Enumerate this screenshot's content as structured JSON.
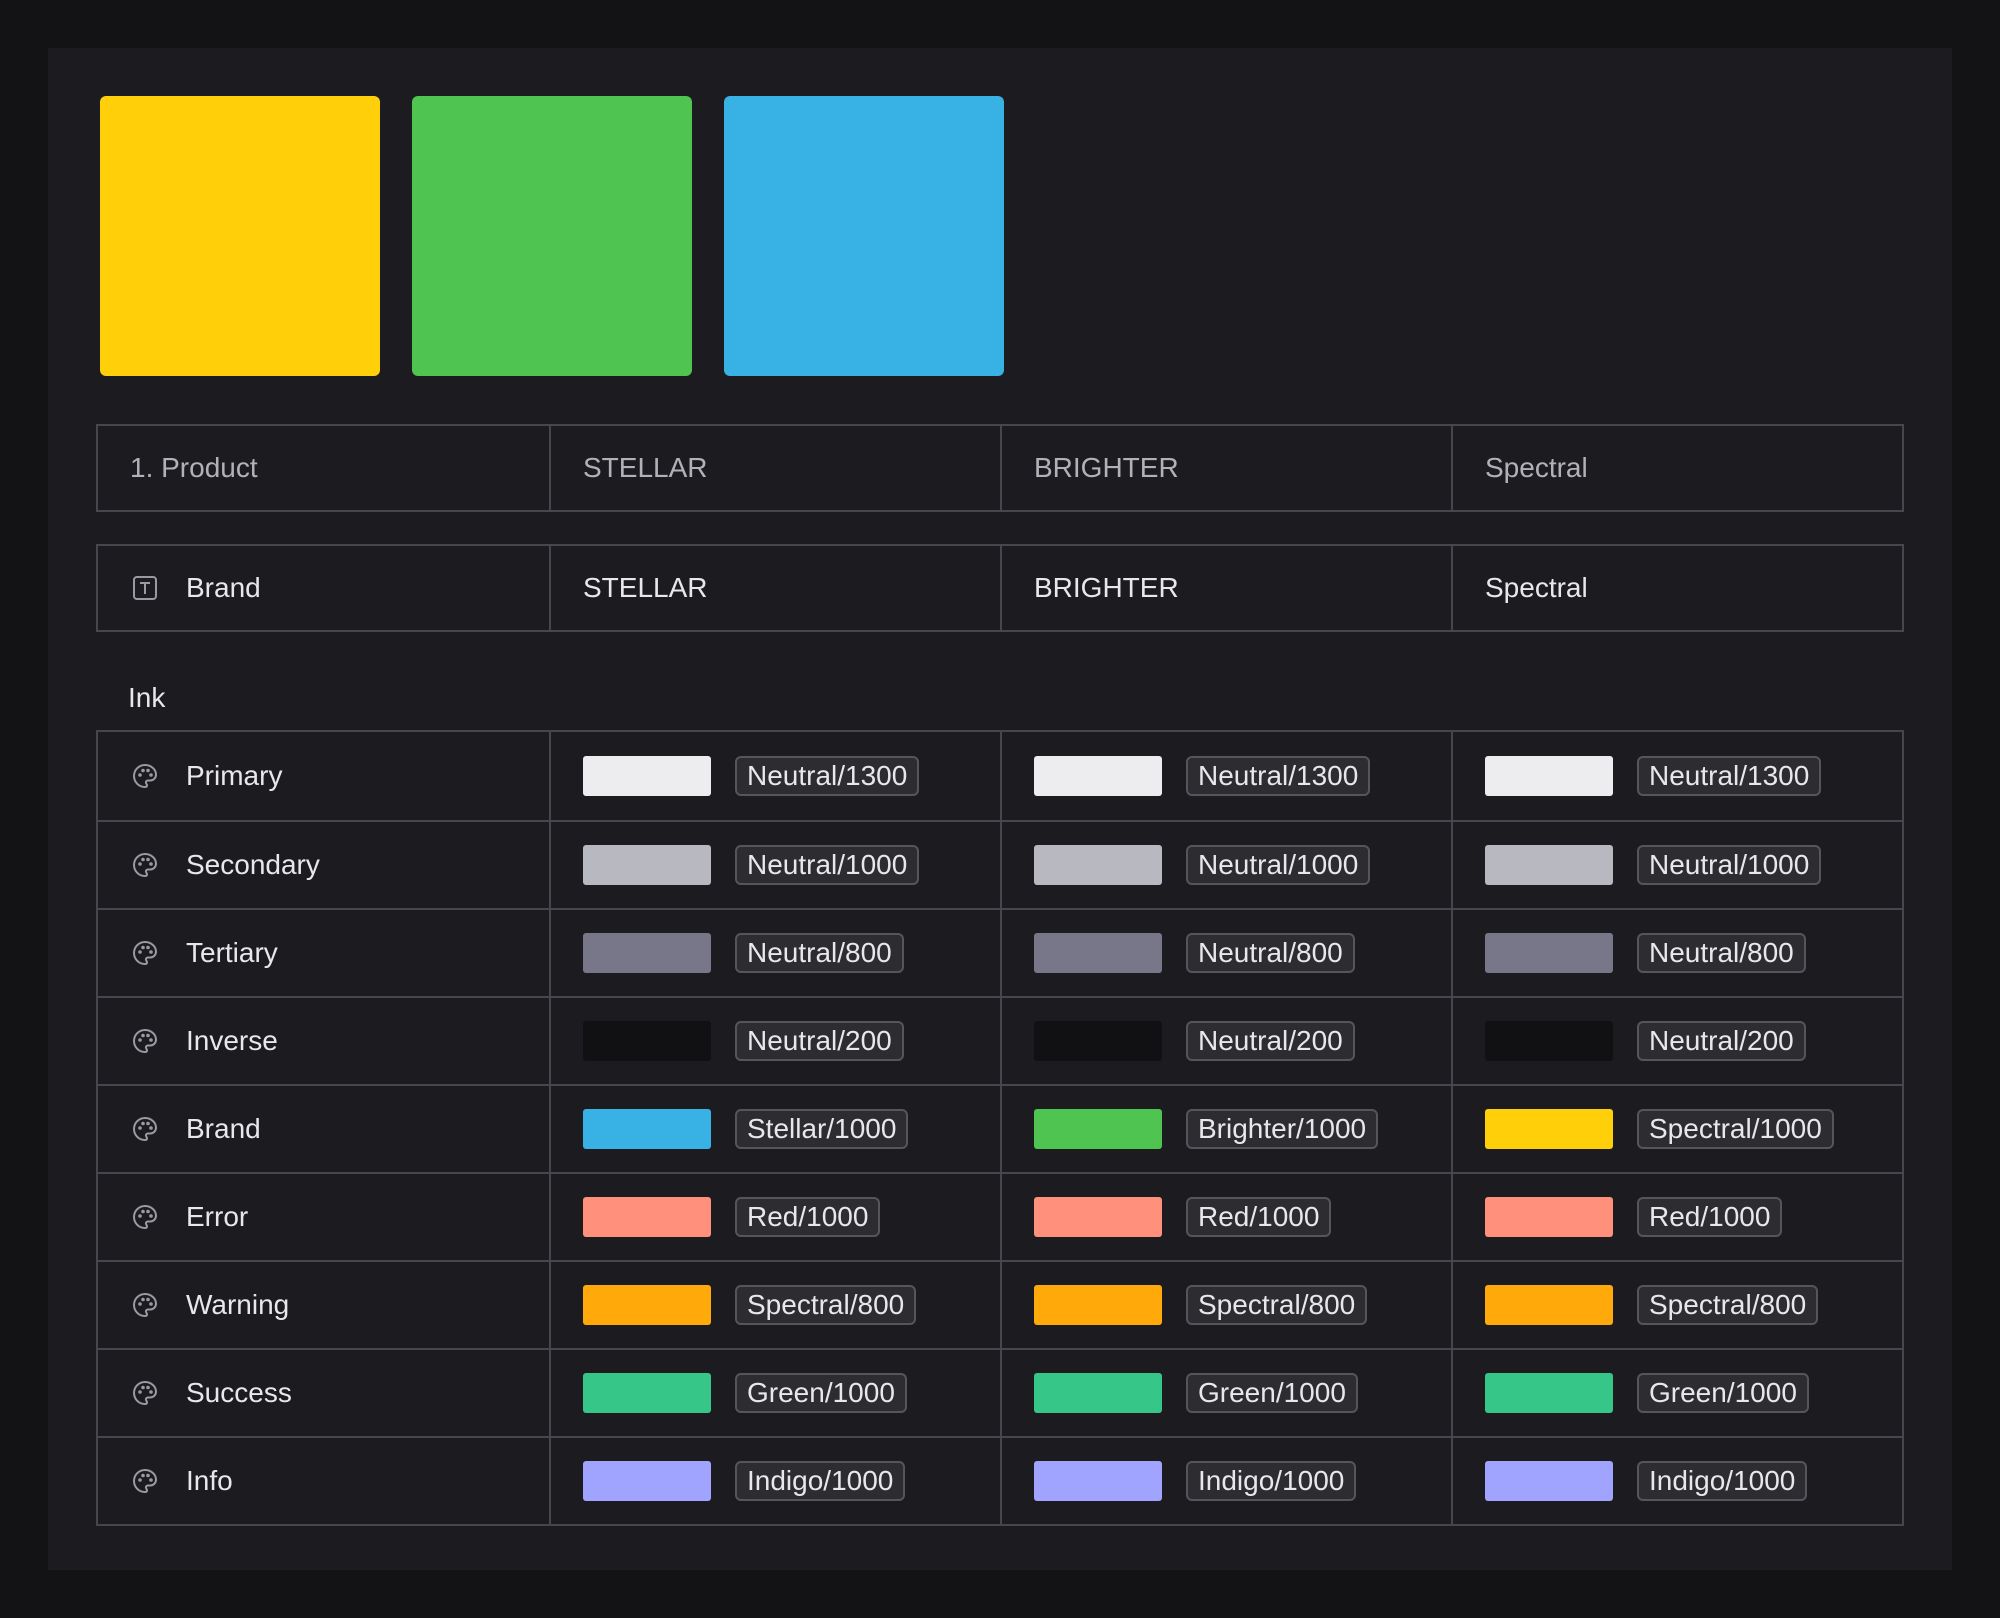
{
  "swatches": [
    {
      "name": "Spectral",
      "color": "#FFD00A"
    },
    {
      "name": "Brighter",
      "color": "#50C450"
    },
    {
      "name": "Stellar",
      "color": "#38B2E4"
    }
  ],
  "header": {
    "label": "1. Product",
    "columns": [
      "STELLAR",
      "BRIGHTER",
      "Spectral"
    ]
  },
  "brand_row": {
    "label": "Brand",
    "icon": "text-type-icon",
    "values": [
      "STELLAR",
      "BRIGHTER",
      "Spectral"
    ]
  },
  "ink": {
    "section_label": "Ink",
    "rows": [
      {
        "label": "Primary",
        "icon": "palette-icon",
        "cells": [
          {
            "color": "#EDEDEF",
            "token": "Neutral/1300"
          },
          {
            "color": "#EDEDEF",
            "token": "Neutral/1300"
          },
          {
            "color": "#EDEDEF",
            "token": "Neutral/1300"
          }
        ]
      },
      {
        "label": "Secondary",
        "icon": "palette-icon",
        "cells": [
          {
            "color": "#B8B8C0",
            "token": "Neutral/1000"
          },
          {
            "color": "#B8B8C0",
            "token": "Neutral/1000"
          },
          {
            "color": "#B8B8C0",
            "token": "Neutral/1000"
          }
        ]
      },
      {
        "label": "Tertiary",
        "icon": "palette-icon",
        "cells": [
          {
            "color": "#787689",
            "token": "Neutral/800"
          },
          {
            "color": "#787689",
            "token": "Neutral/800"
          },
          {
            "color": "#787689",
            "token": "Neutral/800"
          }
        ]
      },
      {
        "label": "Inverse",
        "icon": "palette-icon",
        "cells": [
          {
            "color": "#111113",
            "token": "Neutral/200"
          },
          {
            "color": "#111113",
            "token": "Neutral/200"
          },
          {
            "color": "#111113",
            "token": "Neutral/200"
          }
        ]
      },
      {
        "label": "Brand",
        "icon": "palette-icon",
        "cells": [
          {
            "color": "#38B2E4",
            "token": "Stellar/1000"
          },
          {
            "color": "#50C450",
            "token": "Brighter/1000"
          },
          {
            "color": "#FFD00A",
            "token": "Spectral/1000"
          }
        ]
      },
      {
        "label": "Error",
        "icon": "palette-icon",
        "cells": [
          {
            "color": "#FF907B",
            "token": "Red/1000"
          },
          {
            "color": "#FF907B",
            "token": "Red/1000"
          },
          {
            "color": "#FF907B",
            "token": "Red/1000"
          }
        ]
      },
      {
        "label": "Warning",
        "icon": "palette-icon",
        "cells": [
          {
            "color": "#FFAA0A",
            "token": "Spectral/800"
          },
          {
            "color": "#FFAA0A",
            "token": "Spectral/800"
          },
          {
            "color": "#FFAA0A",
            "token": "Spectral/800"
          }
        ]
      },
      {
        "label": "Success",
        "icon": "palette-icon",
        "cells": [
          {
            "color": "#35C688",
            "token": "Green/1000"
          },
          {
            "color": "#35C688",
            "token": "Green/1000"
          },
          {
            "color": "#35C688",
            "token": "Green/1000"
          }
        ]
      },
      {
        "label": "Info",
        "icon": "palette-icon",
        "cells": [
          {
            "color": "#A1A4FF",
            "token": "Indigo/1000"
          },
          {
            "color": "#A1A4FF",
            "token": "Indigo/1000"
          },
          {
            "color": "#A1A4FF",
            "token": "Indigo/1000"
          }
        ]
      }
    ]
  }
}
